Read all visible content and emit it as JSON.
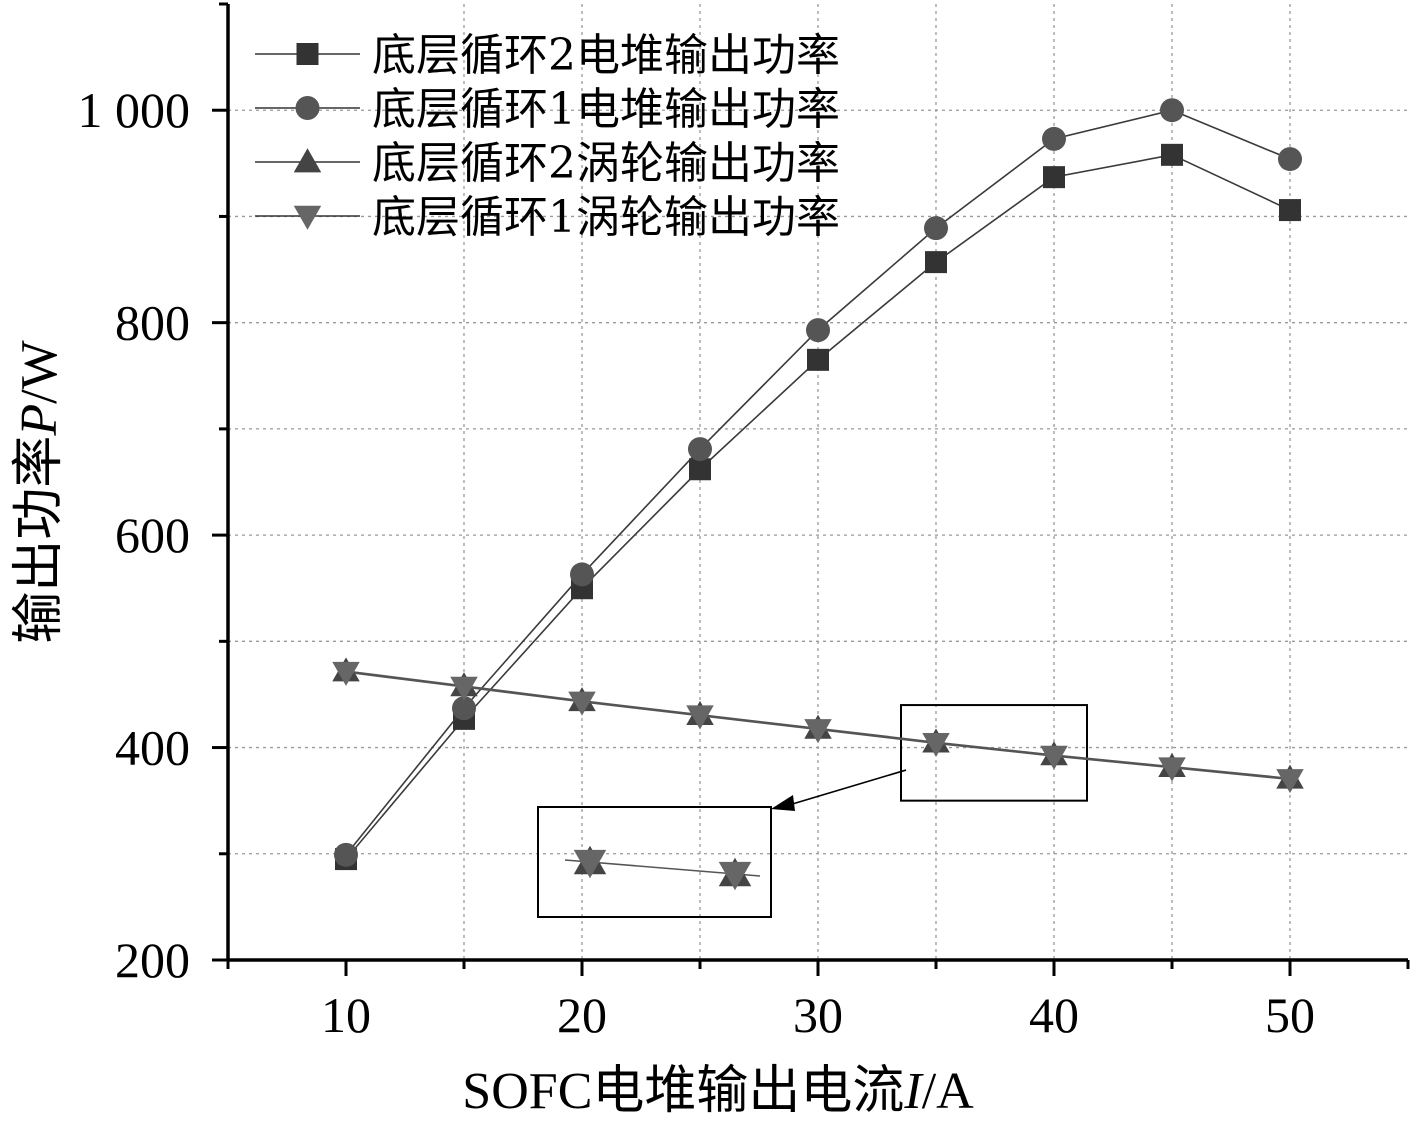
{
  "chart_data": {
    "type": "line",
    "title": "",
    "xlabel": "SOFC电堆输出电流I/A",
    "xlabel_parts": [
      "SOFC电堆输出电流",
      "I",
      "/A"
    ],
    "ylabel": "输出功率P/W",
    "ylabel_parts": [
      "输出功率",
      "P",
      "/W"
    ],
    "xlim": [
      5,
      55
    ],
    "ylim": [
      200,
      1100
    ],
    "xticks": [
      10,
      20,
      30,
      40,
      50
    ],
    "xtick_labels": [
      "10",
      "20",
      "30",
      "40",
      "50"
    ],
    "yticks": [
      200,
      400,
      600,
      800,
      1000
    ],
    "ytick_labels": [
      "200",
      "400",
      "600",
      "800",
      "1 000"
    ],
    "grid": true,
    "legend_position": "top-left",
    "x": [
      10,
      15,
      20,
      25,
      30,
      35,
      40,
      45,
      50
    ],
    "series": [
      {
        "name": "底层循环2电堆输出功率",
        "marker": "square",
        "color": "#333333",
        "values": [
          295,
          427,
          550,
          662,
          765,
          857,
          937,
          958,
          906
        ]
      },
      {
        "name": "底层循环1电堆输出功率",
        "marker": "circle",
        "color": "#555555",
        "values": [
          299,
          437,
          563,
          681,
          793,
          889,
          973,
          1000,
          954
        ]
      },
      {
        "name": "底层循环2涡轮输出功率",
        "marker": "triangle-up",
        "color": "#444444",
        "values": [
          472,
          458,
          444,
          431,
          418,
          405,
          393,
          382,
          371
        ]
      },
      {
        "name": "底层循环1涡轮输出功率",
        "marker": "triangle-down",
        "color": "#666666",
        "values": [
          471,
          457,
          443,
          430,
          417,
          404,
          392,
          381,
          370
        ]
      }
    ],
    "inset": {
      "description_zoom_x_range": [
        35,
        40
      ],
      "points": [
        [
          35,
          405
        ],
        [
          40,
          392
        ]
      ]
    }
  }
}
